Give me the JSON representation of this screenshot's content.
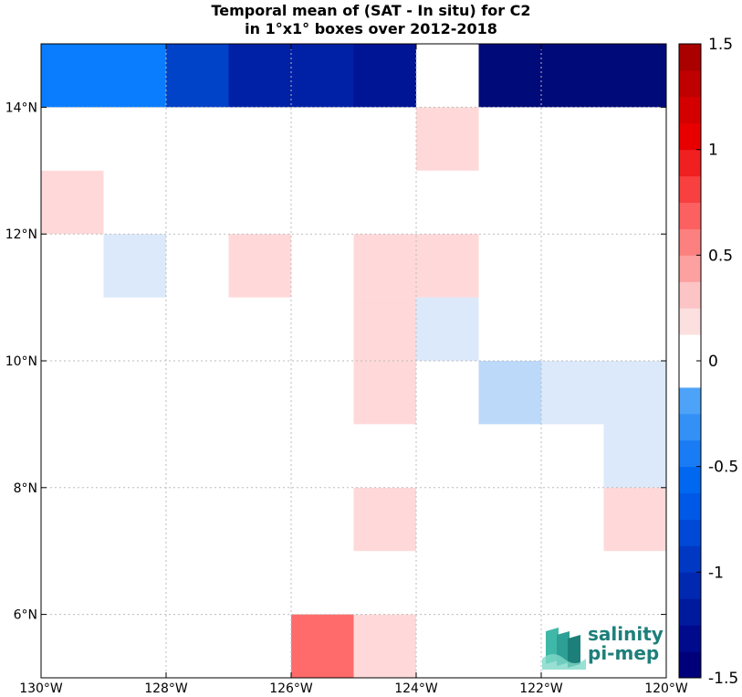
{
  "title": {
    "line1": "Temporal mean of (SAT - In situ) for C2",
    "line2": "in 1°x1° boxes over 2012-2018"
  },
  "logo": {
    "line1": "salinity",
    "line2": "pi-mep"
  },
  "chart_data": {
    "type": "heatmap",
    "xlim": [
      -130,
      -120
    ],
    "ylim": [
      5,
      15
    ],
    "grid": true,
    "x_ticks": [
      -130,
      -128,
      -126,
      -124,
      -122,
      -120
    ],
    "x_tick_labels": [
      "130°W",
      "128°W",
      "126°W",
      "124°W",
      "122°W",
      "120°W"
    ],
    "y_ticks": [
      6,
      8,
      10,
      12,
      14
    ],
    "y_tick_labels": [
      "6°N",
      "8°N",
      "10°N",
      "12°N",
      "14°N"
    ],
    "colorbar": {
      "min": -1.5,
      "max": 1.5,
      "ticks": [
        1.5,
        1,
        0.5,
        0,
        -0.5,
        -1,
        -1.5
      ],
      "tick_labels": [
        "1.5",
        "1",
        "0.5",
        "0",
        "-0.5",
        "-1",
        "-1.5"
      ]
    },
    "cells": [
      {
        "lon": -130,
        "lat": 14,
        "value": -0.8
      },
      {
        "lon": -129,
        "lat": 14,
        "value": -0.8
      },
      {
        "lon": -128,
        "lat": 14,
        "value": -1.1
      },
      {
        "lon": -127,
        "lat": 14,
        "value": -1.25
      },
      {
        "lon": -126,
        "lat": 14,
        "value": -1.25
      },
      {
        "lon": -125,
        "lat": 14,
        "value": -1.35
      },
      {
        "lon": -124,
        "lat": 14,
        "value": 0
      },
      {
        "lon": -123,
        "lat": 14,
        "value": -1.45
      },
      {
        "lon": -122,
        "lat": 14,
        "value": -1.45
      },
      {
        "lon": -121,
        "lat": 14,
        "value": -1.45
      },
      {
        "lon": -124,
        "lat": 13,
        "value": 0.15
      },
      {
        "lon": -130,
        "lat": 12,
        "value": 0.15
      },
      {
        "lon": -129,
        "lat": 11,
        "value": -0.15
      },
      {
        "lon": -127,
        "lat": 11,
        "value": 0.15
      },
      {
        "lon": -125,
        "lat": 11,
        "value": 0.15
      },
      {
        "lon": -124,
        "lat": 11,
        "value": 0.15
      },
      {
        "lon": -125,
        "lat": 10,
        "value": 0.15
      },
      {
        "lon": -124,
        "lat": 10,
        "value": -0.15
      },
      {
        "lon": -125,
        "lat": 9,
        "value": 0.15
      },
      {
        "lon": -123,
        "lat": 9,
        "value": -0.25
      },
      {
        "lon": -122,
        "lat": 9,
        "value": -0.15
      },
      {
        "lon": -121,
        "lat": 9,
        "value": -0.15
      },
      {
        "lon": -121,
        "lat": 8,
        "value": -0.15
      },
      {
        "lon": -125,
        "lat": 7,
        "value": 0.15
      },
      {
        "lon": -121,
        "lat": 7,
        "value": 0.15
      },
      {
        "lon": -126,
        "lat": 5,
        "value": 0.45
      },
      {
        "lon": -125,
        "lat": 5,
        "value": 0.15
      }
    ]
  },
  "colors": {
    "grid": "#bbbbbb",
    "axis": "#000000",
    "neutral_bin": "#ffffff"
  }
}
